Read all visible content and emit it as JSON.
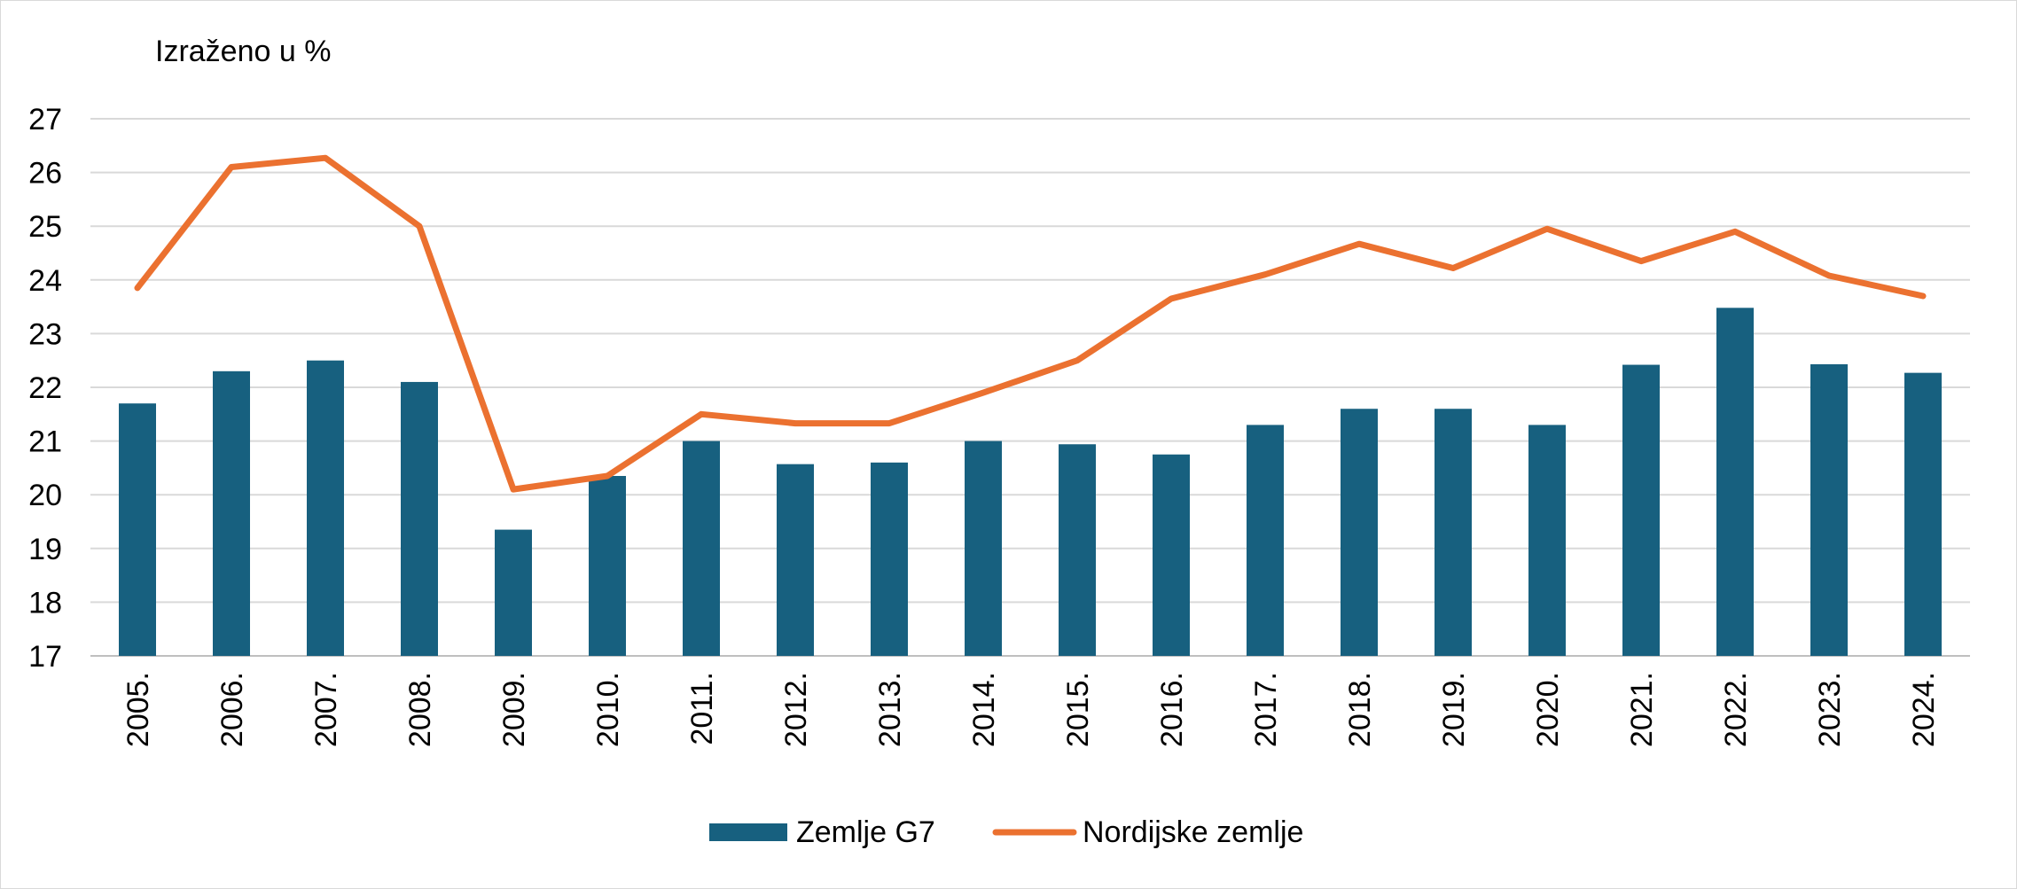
{
  "chart_data": {
    "type": "bar",
    "unit_label": "Izraženo u %",
    "categories": [
      "2005.",
      "2006.",
      "2007.",
      "2008.",
      "2009.",
      "2010.",
      "2011.",
      "2012.",
      "2013.",
      "2014.",
      "2015.",
      "2016.",
      "2017.",
      "2018.",
      "2019.",
      "2020.",
      "2021.",
      "2022.",
      "2023.",
      "2024."
    ],
    "series": [
      {
        "name": "Zemlje G7",
        "type": "bar",
        "color": "#17607f",
        "values": [
          21.7,
          22.3,
          22.5,
          22.1,
          19.35,
          20.35,
          21.0,
          20.57,
          20.6,
          21.0,
          20.94,
          20.75,
          21.3,
          21.6,
          21.6,
          21.3,
          22.42,
          23.48,
          22.43,
          22.27
        ]
      },
      {
        "name": "Nordijske zemlje",
        "type": "line",
        "color": "#eb7130",
        "values": [
          23.85,
          26.1,
          26.27,
          25.0,
          20.1,
          20.35,
          21.5,
          21.33,
          21.33,
          21.9,
          22.5,
          23.65,
          24.1,
          24.67,
          24.22,
          24.95,
          24.35,
          24.9,
          24.08,
          23.7
        ]
      }
    ],
    "ylim": [
      17,
      27
    ],
    "yticks": [
      17,
      18,
      19,
      20,
      21,
      22,
      23,
      24,
      25,
      26,
      27
    ],
    "grid": true,
    "legend_position": "bottom"
  }
}
